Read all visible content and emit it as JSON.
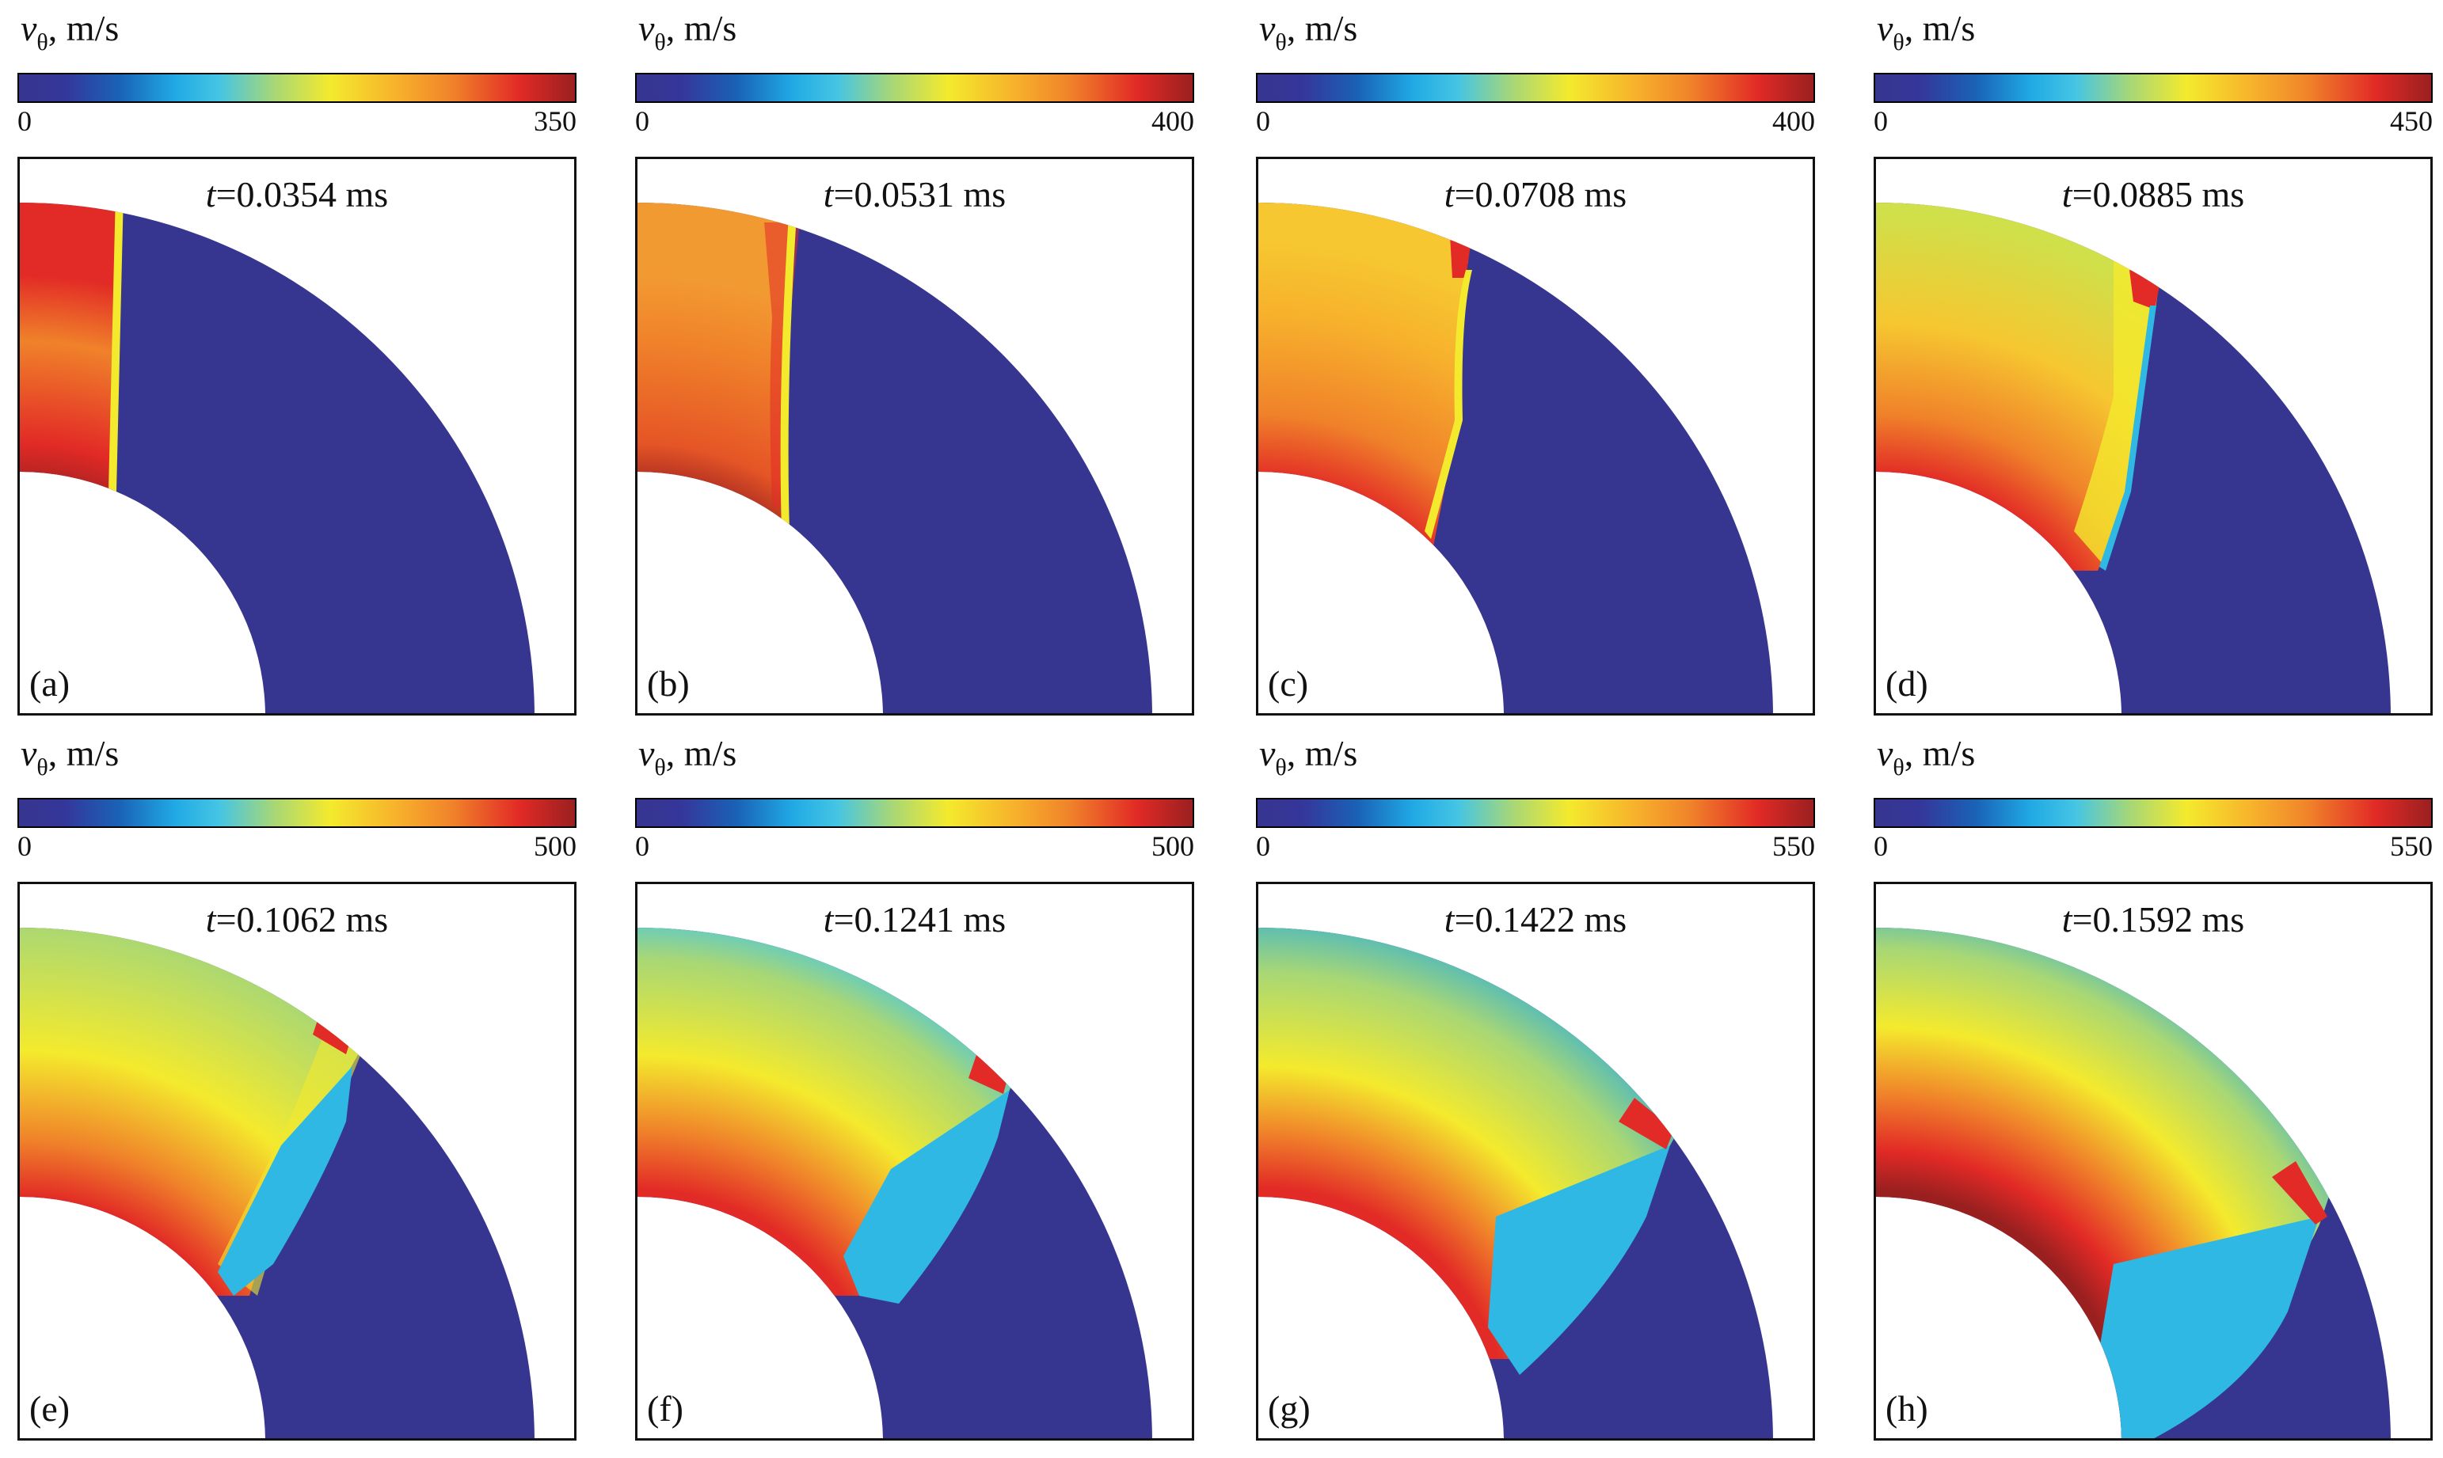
{
  "figure": {
    "colorbar_unit": ", m/s",
    "colorbar_symbol": "v",
    "colorbar_subscript": "θ",
    "colors": {
      "low": "#36358f",
      "cyan": "#2fb8e4",
      "yellow": "#f4ea2d",
      "orange": "#f0822a",
      "red": "#e22a26",
      "dark_red": "#9a2020"
    },
    "panels": [
      {
        "letter": "(a)",
        "time_var": "t",
        "time_value": "=0.0354 ms",
        "min": "0",
        "max": "350"
      },
      {
        "letter": "(b)",
        "time_var": "t",
        "time_value": "=0.0531 ms",
        "min": "0",
        "max": "400"
      },
      {
        "letter": "(c)",
        "time_var": "t",
        "time_value": "=0.0708 ms",
        "min": "0",
        "max": "400"
      },
      {
        "letter": "(d)",
        "time_var": "t",
        "time_value": "=0.0885 ms",
        "min": "0",
        "max": "450"
      },
      {
        "letter": "(e)",
        "time_var": "t",
        "time_value": "=0.1062 ms",
        "min": "0",
        "max": "500"
      },
      {
        "letter": "(f)",
        "time_var": "t",
        "time_value": "=0.1241 ms",
        "min": "0",
        "max": "500"
      },
      {
        "letter": "(g)",
        "time_var": "t",
        "time_value": "=0.1422 ms",
        "min": "0",
        "max": "550"
      },
      {
        "letter": "(h)",
        "time_var": "t",
        "time_value": "=0.1592 ms",
        "min": "0",
        "max": "550"
      }
    ]
  }
}
